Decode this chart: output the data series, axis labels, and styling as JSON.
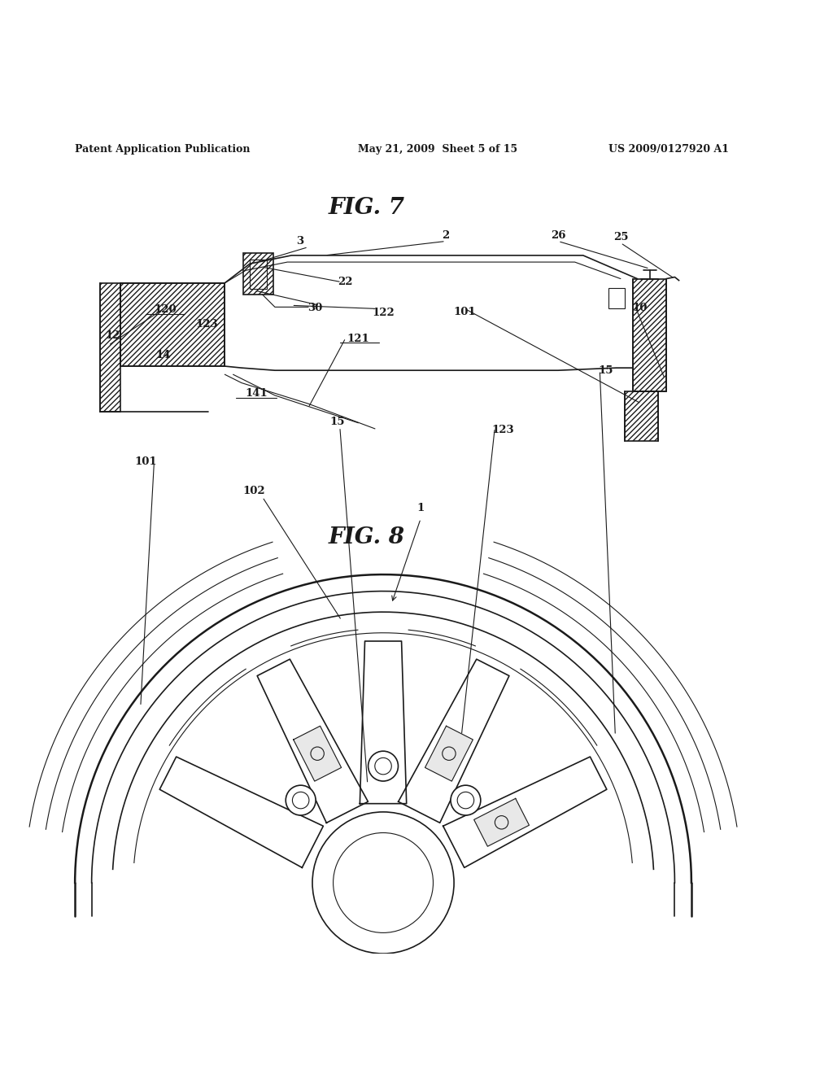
{
  "bg_color": "#ffffff",
  "text_color": "#000000",
  "header_left": "Patent Application Publication",
  "header_mid": "May 21, 2009  Sheet 5 of 15",
  "header_right": "US 2009/0127920 A1",
  "fig7_title": "FIG. 7",
  "fig8_title": "FIG. 8",
  "line_color": "#1a1a1a"
}
